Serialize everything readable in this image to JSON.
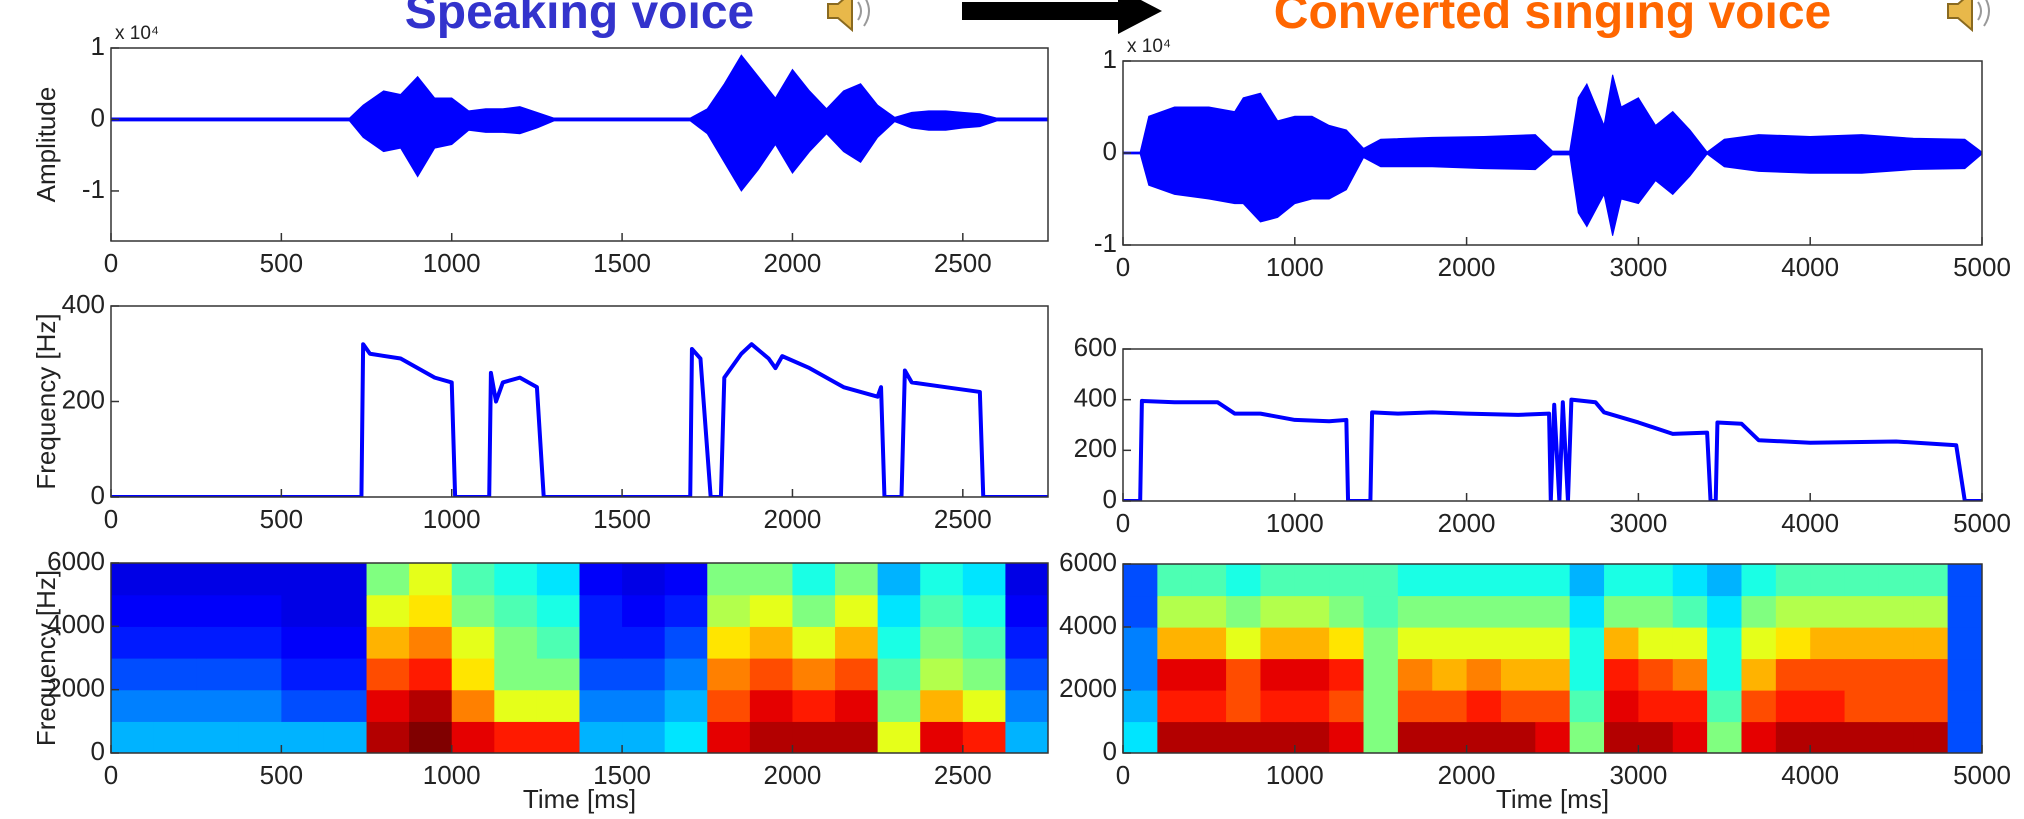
{
  "chart_data": [
    {
      "type": "waveform",
      "title": "Speaking voice",
      "title_color": "#3333cc",
      "ylabel": "Amplitude",
      "exponent_label": "x 10⁴",
      "xlim": [
        0,
        2750
      ],
      "xticks": [
        0,
        500,
        1000,
        1500,
        2000,
        2500
      ],
      "ylim": [
        -1.7,
        1
      ],
      "yticks": [
        -1,
        0,
        1
      ],
      "x": [
        0,
        700,
        740,
        800,
        850,
        900,
        950,
        1000,
        1050,
        1100,
        1150,
        1200,
        1250,
        1300,
        1700,
        1750,
        1800,
        1850,
        1900,
        1950,
        2000,
        2050,
        2100,
        2150,
        2200,
        2250,
        2300,
        2350,
        2400,
        2450,
        2500,
        2550,
        2600,
        2750
      ],
      "series": [
        {
          "color": "#0000ff",
          "values": [
            0.02,
            0.02,
            0.2,
            0.4,
            0.35,
            0.6,
            0.3,
            0.3,
            0.12,
            0.15,
            0.15,
            0.18,
            0.1,
            0.02,
            0.02,
            0.15,
            0.5,
            0.9,
            0.6,
            0.3,
            0.7,
            0.4,
            0.15,
            0.4,
            0.5,
            0.2,
            0.03,
            0.1,
            0.12,
            0.12,
            0.1,
            0.08,
            0.02,
            0.02
          ]
        },
        {
          "color": "#0000ff",
          "values": [
            -0.02,
            -0.02,
            -0.25,
            -0.45,
            -0.4,
            -0.8,
            -0.4,
            -0.35,
            -0.15,
            -0.18,
            -0.18,
            -0.2,
            -0.12,
            -0.02,
            -0.02,
            -0.2,
            -0.6,
            -1.0,
            -0.7,
            -0.35,
            -0.75,
            -0.45,
            -0.2,
            -0.45,
            -0.6,
            -0.25,
            -0.03,
            -0.12,
            -0.15,
            -0.15,
            -0.12,
            -0.1,
            -0.02,
            -0.02
          ]
        }
      ]
    },
    {
      "type": "waveform",
      "title": "Converted singing voice",
      "title_color": "#ff6600",
      "exponent_label": "x 10⁴",
      "xlim": [
        0,
        5000
      ],
      "xticks": [
        0,
        1000,
        2000,
        3000,
        4000,
        5000
      ],
      "ylim": [
        -1,
        1
      ],
      "yticks": [
        -1,
        0,
        1
      ],
      "x": [
        0,
        100,
        150,
        300,
        500,
        650,
        700,
        800,
        900,
        1000,
        1100,
        1200,
        1300,
        1400,
        1500,
        1800,
        2100,
        2400,
        2500,
        2600,
        2650,
        2700,
        2800,
        2850,
        2900,
        3000,
        3100,
        3200,
        3300,
        3400,
        3500,
        3700,
        4000,
        4300,
        4600,
        4900,
        5000
      ],
      "series": [
        {
          "color": "#0000ff",
          "values": [
            0.01,
            0.01,
            0.4,
            0.5,
            0.5,
            0.45,
            0.6,
            0.65,
            0.35,
            0.4,
            0.4,
            0.3,
            0.25,
            0.05,
            0.15,
            0.17,
            0.18,
            0.2,
            0.02,
            0.02,
            0.6,
            0.75,
            0.3,
            0.85,
            0.5,
            0.6,
            0.3,
            0.45,
            0.25,
            0.01,
            0.15,
            0.2,
            0.18,
            0.2,
            0.16,
            0.15,
            0.01
          ]
        },
        {
          "color": "#0000ff",
          "values": [
            -0.01,
            -0.01,
            -0.35,
            -0.45,
            -0.5,
            -0.55,
            -0.55,
            -0.75,
            -0.7,
            -0.55,
            -0.5,
            -0.5,
            -0.4,
            -0.05,
            -0.15,
            -0.15,
            -0.17,
            -0.18,
            -0.02,
            -0.02,
            -0.65,
            -0.8,
            -0.45,
            -0.9,
            -0.5,
            -0.55,
            -0.3,
            -0.45,
            -0.25,
            -0.01,
            -0.15,
            -0.2,
            -0.22,
            -0.22,
            -0.18,
            -0.17,
            -0.01
          ]
        }
      ]
    },
    {
      "type": "line",
      "ylabel": "Frequency [Hz]",
      "xlim": [
        0,
        2750
      ],
      "xticks": [
        0,
        500,
        1000,
        1500,
        2000,
        2500
      ],
      "ylim": [
        0,
        400
      ],
      "yticks": [
        0,
        200,
        400
      ],
      "x": [
        0,
        735,
        740,
        760,
        850,
        950,
        1000,
        1010,
        1110,
        1115,
        1130,
        1150,
        1200,
        1250,
        1270,
        1700,
        1705,
        1730,
        1760,
        1790,
        1800,
        1850,
        1880,
        1930,
        1950,
        1970,
        2050,
        2150,
        2250,
        2260,
        2270,
        2320,
        2330,
        2350,
        2450,
        2550,
        2560,
        2750
      ],
      "series": [
        {
          "color": "#0000ff",
          "values": [
            0,
            0,
            320,
            300,
            290,
            250,
            240,
            0,
            0,
            260,
            200,
            240,
            250,
            230,
            0,
            0,
            310,
            290,
            0,
            0,
            250,
            300,
            320,
            290,
            270,
            295,
            270,
            230,
            210,
            230,
            0,
            0,
            265,
            240,
            230,
            220,
            0,
            0
          ]
        }
      ]
    },
    {
      "type": "line",
      "xlim": [
        0,
        5000
      ],
      "xticks": [
        0,
        1000,
        2000,
        3000,
        4000,
        5000
      ],
      "ylim": [
        0,
        600
      ],
      "yticks": [
        0,
        200,
        400,
        600
      ],
      "x": [
        0,
        100,
        110,
        300,
        550,
        650,
        800,
        1000,
        1200,
        1300,
        1310,
        1440,
        1450,
        1600,
        1800,
        2000,
        2300,
        2480,
        2490,
        2510,
        2540,
        2560,
        2590,
        2610,
        2750,
        2800,
        3000,
        3200,
        3400,
        3420,
        3450,
        3460,
        3600,
        3700,
        4000,
        4500,
        4850,
        4900,
        5000
      ],
      "series": [
        {
          "color": "#0000ff",
          "values": [
            0,
            0,
            395,
            390,
            390,
            345,
            345,
            320,
            315,
            320,
            0,
            0,
            350,
            345,
            350,
            345,
            340,
            345,
            0,
            380,
            0,
            390,
            0,
            400,
            390,
            350,
            310,
            265,
            270,
            0,
            0,
            310,
            305,
            240,
            230,
            235,
            220,
            0,
            0
          ]
        }
      ]
    },
    {
      "type": "heatmap",
      "colormap": "jet",
      "ylabel": "Frequency [Hz]",
      "xlabel": "Time [ms]",
      "xlim": [
        0,
        2750
      ],
      "xticks": [
        0,
        500,
        1000,
        1500,
        2000,
        2500
      ],
      "ylim": [
        0,
        6000
      ],
      "yticks": [
        0,
        2000,
        4000,
        6000
      ],
      "x_edges": [
        0,
        125,
        250,
        375,
        500,
        625,
        750,
        875,
        1000,
        1125,
        1250,
        1375,
        1500,
        1625,
        1750,
        1875,
        2000,
        2125,
        2250,
        2375,
        2500,
        2625,
        2750
      ],
      "y_edges": [
        0,
        1000,
        2000,
        3000,
        4000,
        5000,
        6000
      ],
      "z": [
        [
          0.3,
          0.3,
          0.3,
          0.3,
          0.3,
          0.3,
          0.95,
          1,
          0.9,
          0.85,
          0.85,
          0.3,
          0.3,
          0.35,
          0.9,
          0.95,
          0.95,
          0.95,
          0.6,
          0.9,
          0.85,
          0.3
        ],
        [
          0.25,
          0.25,
          0.25,
          0.25,
          0.2,
          0.2,
          0.9,
          0.95,
          0.75,
          0.6,
          0.6,
          0.25,
          0.25,
          0.3,
          0.8,
          0.9,
          0.85,
          0.9,
          0.5,
          0.7,
          0.6,
          0.25
        ],
        [
          0.2,
          0.2,
          0.2,
          0.2,
          0.15,
          0.15,
          0.8,
          0.85,
          0.65,
          0.5,
          0.5,
          0.2,
          0.2,
          0.25,
          0.75,
          0.8,
          0.75,
          0.8,
          0.45,
          0.55,
          0.5,
          0.2
        ],
        [
          0.15,
          0.15,
          0.15,
          0.15,
          0.12,
          0.12,
          0.7,
          0.75,
          0.6,
          0.5,
          0.45,
          0.15,
          0.15,
          0.2,
          0.65,
          0.7,
          0.6,
          0.7,
          0.4,
          0.5,
          0.45,
          0.15
        ],
        [
          0.12,
          0.12,
          0.12,
          0.12,
          0.1,
          0.1,
          0.6,
          0.65,
          0.5,
          0.45,
          0.4,
          0.15,
          0.12,
          0.15,
          0.55,
          0.6,
          0.5,
          0.6,
          0.35,
          0.45,
          0.4,
          0.12
        ],
        [
          0.1,
          0.1,
          0.1,
          0.1,
          0.1,
          0.1,
          0.5,
          0.6,
          0.45,
          0.4,
          0.35,
          0.12,
          0.1,
          0.12,
          0.5,
          0.5,
          0.4,
          0.5,
          0.3,
          0.4,
          0.35,
          0.1
        ]
      ]
    },
    {
      "type": "heatmap",
      "colormap": "jet",
      "xlabel": "Time [ms]",
      "xlim": [
        0,
        5000
      ],
      "xticks": [
        0,
        1000,
        2000,
        3000,
        4000,
        5000
      ],
      "ylim": [
        0,
        6000
      ],
      "yticks": [
        0,
        2000,
        4000,
        6000
      ],
      "x_edges": [
        0,
        200,
        400,
        600,
        800,
        1000,
        1200,
        1400,
        1600,
        1800,
        2000,
        2200,
        2400,
        2600,
        2800,
        3000,
        3200,
        3400,
        3600,
        3800,
        4000,
        4200,
        4400,
        4600,
        4800,
        5000
      ],
      "y_edges": [
        0,
        1000,
        2000,
        3000,
        4000,
        5000,
        6000
      ],
      "z": [
        [
          0.35,
          0.95,
          0.95,
          0.95,
          0.95,
          0.95,
          0.9,
          0.5,
          0.95,
          0.95,
          0.95,
          0.95,
          0.9,
          0.5,
          0.95,
          0.95,
          0.9,
          0.5,
          0.9,
          0.95,
          0.95,
          0.95,
          0.95,
          0.95,
          0.2
        ],
        [
          0.3,
          0.85,
          0.85,
          0.8,
          0.85,
          0.85,
          0.8,
          0.5,
          0.8,
          0.8,
          0.85,
          0.8,
          0.8,
          0.45,
          0.9,
          0.85,
          0.85,
          0.45,
          0.8,
          0.85,
          0.85,
          0.8,
          0.8,
          0.8,
          0.2
        ],
        [
          0.25,
          0.9,
          0.9,
          0.8,
          0.9,
          0.9,
          0.85,
          0.5,
          0.75,
          0.7,
          0.75,
          0.7,
          0.7,
          0.4,
          0.85,
          0.8,
          0.75,
          0.4,
          0.7,
          0.8,
          0.8,
          0.8,
          0.8,
          0.8,
          0.2
        ],
        [
          0.25,
          0.7,
          0.7,
          0.6,
          0.7,
          0.7,
          0.65,
          0.5,
          0.6,
          0.6,
          0.6,
          0.6,
          0.6,
          0.4,
          0.7,
          0.6,
          0.6,
          0.4,
          0.6,
          0.65,
          0.7,
          0.7,
          0.7,
          0.7,
          0.2
        ],
        [
          0.2,
          0.55,
          0.55,
          0.5,
          0.55,
          0.55,
          0.5,
          0.45,
          0.5,
          0.5,
          0.5,
          0.5,
          0.5,
          0.35,
          0.5,
          0.5,
          0.45,
          0.35,
          0.5,
          0.55,
          0.55,
          0.55,
          0.55,
          0.55,
          0.2
        ],
        [
          0.2,
          0.45,
          0.45,
          0.4,
          0.45,
          0.45,
          0.45,
          0.45,
          0.4,
          0.4,
          0.4,
          0.4,
          0.4,
          0.3,
          0.4,
          0.4,
          0.35,
          0.3,
          0.4,
          0.45,
          0.45,
          0.45,
          0.45,
          0.45,
          0.2
        ]
      ]
    }
  ]
}
